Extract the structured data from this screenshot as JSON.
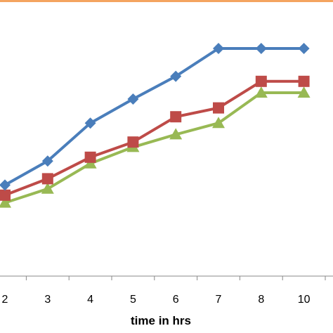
{
  "chart_data": {
    "type": "line",
    "categories": [
      "2",
      "3",
      "4",
      "5",
      "6",
      "7",
      "8",
      "10"
    ],
    "xlabel": "time in hrs",
    "ylabel": "",
    "title": "",
    "series": [
      {
        "values": [
          72,
          91,
          121,
          140,
          158,
          180,
          180,
          180
        ],
        "color": "#4a7ebb",
        "marker": "diamond"
      },
      {
        "values": [
          64,
          77,
          94,
          106,
          126,
          133,
          154,
          154
        ],
        "color": "#be4b48",
        "marker": "square"
      },
      {
        "values": [
          58,
          69,
          89,
          102,
          112,
          121,
          145,
          145
        ],
        "color": "#98b954",
        "marker": "triangle"
      }
    ],
    "grid": false,
    "legend": "none",
    "frame_color": "#f4a460"
  }
}
